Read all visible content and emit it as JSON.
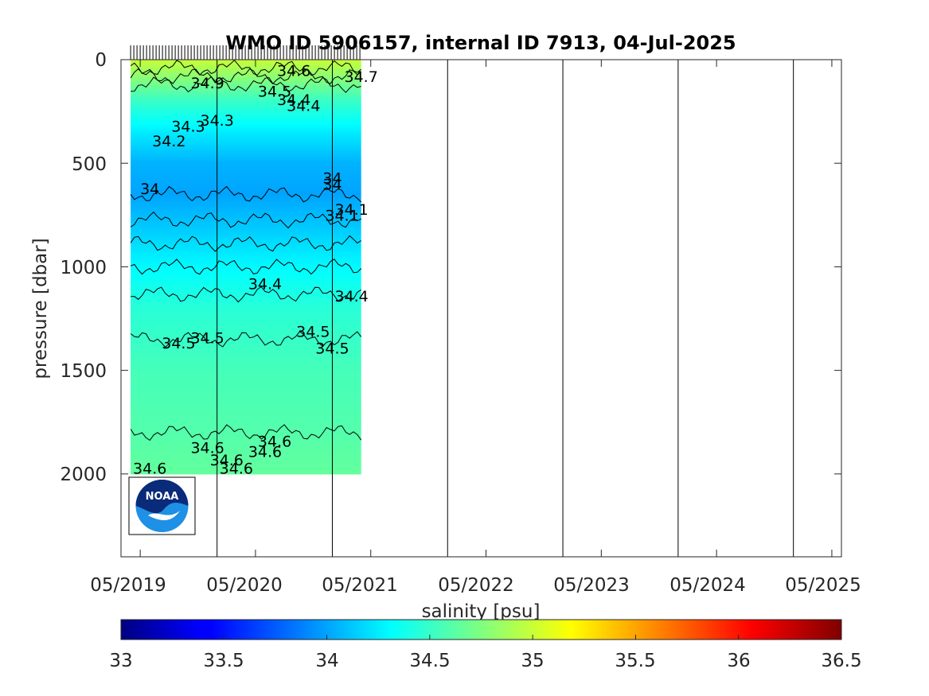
{
  "chart_data": {
    "type": "heatmap",
    "title": "WMO ID 5906157, internal ID 7913, 04-Jul-2025",
    "ylabel": "pressure [dbar]",
    "xlabel": "",
    "colorbar_label": "salinity [psu]",
    "x_ticks": [
      "05/2019",
      "05/2020",
      "05/2021",
      "05/2022",
      "05/2023",
      "05/2024",
      "05/2025"
    ],
    "y_ticks": [
      "0",
      "500",
      "1000",
      "1500",
      "2000"
    ],
    "y_reversed": true,
    "ylim": [
      2400,
      0
    ],
    "xlim": [
      "03/2019",
      "06/2025"
    ],
    "colorbar_ticks": [
      "33",
      "33.5",
      "34",
      "34.5",
      "35",
      "35.5",
      "36",
      "36.5"
    ],
    "colorbar_range": [
      33,
      36.5
    ],
    "colormap": "jet",
    "data_extent": {
      "time_start": "04/2019",
      "time_end": "04/2021",
      "pressure_max": 2000
    },
    "year_boundaries": [
      "01/2020",
      "01/2021",
      "01/2022",
      "01/2023",
      "01/2024",
      "01/2025"
    ],
    "salinity_by_pressure": [
      {
        "pressure": 0,
        "salinity": 35.0
      },
      {
        "pressure": 100,
        "salinity": 34.75
      },
      {
        "pressure": 200,
        "salinity": 34.5
      },
      {
        "pressure": 350,
        "salinity": 34.25
      },
      {
        "pressure": 500,
        "salinity": 34.05
      },
      {
        "pressure": 650,
        "salinity": 34.0
      },
      {
        "pressure": 800,
        "salinity": 34.12
      },
      {
        "pressure": 1000,
        "salinity": 34.3
      },
      {
        "pressure": 1200,
        "salinity": 34.45
      },
      {
        "pressure": 1500,
        "salinity": 34.55
      },
      {
        "pressure": 1800,
        "salinity": 34.6
      },
      {
        "pressure": 2000,
        "salinity": 34.65
      }
    ],
    "contour_labels": [
      {
        "text": "34.5",
        "t": "09/2019",
        "p": 1370
      },
      {
        "text": "34.5",
        "t": "12/2019",
        "p": 1345
      },
      {
        "text": "34.5",
        "t": "11/2020",
        "p": 1315
      },
      {
        "text": "34.5",
        "t": "01/2021",
        "p": 1395
      },
      {
        "text": "34.4",
        "t": "06/2020",
        "p": 1085
      },
      {
        "text": "34.4",
        "t": "03/2021",
        "p": 1145
      },
      {
        "text": "34.6",
        "t": "06/2019",
        "p": 1975
      },
      {
        "text": "34.6",
        "t": "12/2019",
        "p": 1875
      },
      {
        "text": "34.6",
        "t": "02/2020",
        "p": 1935
      },
      {
        "text": "34.6",
        "t": "03/2020",
        "p": 1975
      },
      {
        "text": "34.6",
        "t": "07/2020",
        "p": 1845
      },
      {
        "text": "34.6",
        "t": "06/2020",
        "p": 1895
      },
      {
        "text": "34",
        "t": "06/2019",
        "p": 625
      },
      {
        "text": "34",
        "t": "01/2021",
        "p": 575
      },
      {
        "text": "34",
        "t": "01/2021",
        "p": 605
      },
      {
        "text": "34.1",
        "t": "03/2021",
        "p": 725
      },
      {
        "text": "34.1",
        "t": "02/2021",
        "p": 755
      },
      {
        "text": "34.2",
        "t": "08/2019",
        "p": 395
      },
      {
        "text": "34.3",
        "t": "10/2019",
        "p": 325
      },
      {
        "text": "34.3",
        "t": "01/2020",
        "p": 295
      },
      {
        "text": "34.4",
        "t": "10/2020",
        "p": 225
      },
      {
        "text": "34.5",
        "t": "07/2020",
        "p": 155
      },
      {
        "text": "34.4",
        "t": "09/2020",
        "p": 195
      },
      {
        "text": "34.9",
        "t": "12/2019",
        "p": 115
      },
      {
        "text": "34.6",
        "t": "09/2020",
        "p": 55
      },
      {
        "text": "34.7",
        "t": "04/2021",
        "p": 85
      }
    ]
  },
  "logo": {
    "name": "NOAA",
    "text": "NOAA"
  }
}
